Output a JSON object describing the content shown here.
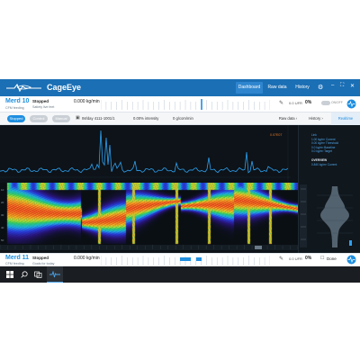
{
  "app": {
    "title": "CageEye",
    "nav": {
      "dashboard": "Dashboard",
      "raw_data": "Raw data",
      "history": "History"
    },
    "icons": {
      "logo": "fish-logo-icon",
      "settings": "gear-icon",
      "minimize": "minimize-icon",
      "maximize": "maximize-icon",
      "close": "close-icon"
    },
    "accent": "#1b6fb5"
  },
  "pen10": {
    "name": "Merd 10",
    "subtitle": "CFM feeding",
    "status": "Stopped",
    "status_sub": "Satiety live feet",
    "value": "0.000 kg/min",
    "value_sub": "",
    "pct_value": "0.0",
    "pct_unit": "UFR",
    "pct": "0%",
    "pct_sub": "",
    "toggle_label": "ON/OFF"
  },
  "toolbar": {
    "stopped_label": "Stopped",
    "b2_label": "Control",
    "b3_label": "Manual",
    "info1": "IM/day 4111-1001/1",
    "info2": "0.00% intensity",
    "info3": "0 g/com/min",
    "tab_raw": "Raw data",
    "tab_history": "History",
    "tab_realtime": "Realtime"
  },
  "viz": {
    "orange_tag": "0.07E07",
    "info_lines": [
      "Link",
      "1.00 kg/m³ Current",
      "0.00 kg/m³ Threshold",
      "0.0 kg/m³ Baseline",
      "0.0 kg/m³ Target"
    ],
    "overview_title": "OVERVIEW",
    "overview_line": "0.840 kg/m³ Current",
    "echo_y_ticks": [
      "10",
      "20",
      "30",
      "40",
      "50"
    ]
  },
  "pen11": {
    "name": "Merd 11",
    "subtitle": "CFM feeding",
    "status": "Stopped",
    "status_sub": "Goals for today",
    "value": "0.000 kg/min",
    "pct_value": "0.0",
    "pct_unit": "UFR",
    "pct": "0%",
    "done_label": "Done"
  },
  "taskbar": {
    "icons": [
      "windows-start-icon",
      "search-icon",
      "task-view-icon",
      "cageeye-app-icon"
    ]
  }
}
